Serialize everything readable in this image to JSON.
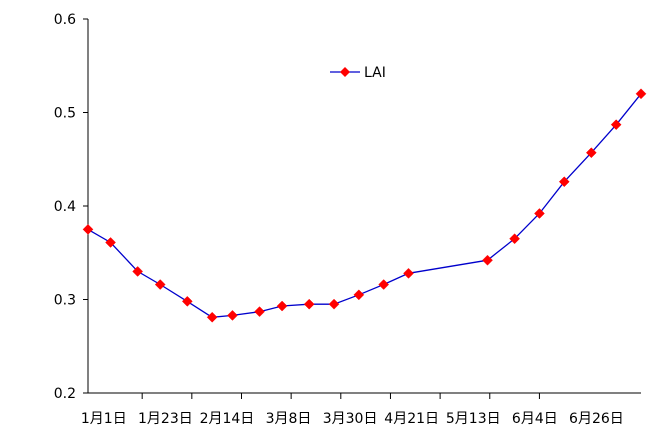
{
  "chart_data": {
    "type": "line",
    "title": "",
    "xlabel": "",
    "ylabel": "",
    "categories": [
      "1月1日",
      "1月23日",
      "2月14日",
      "3月8日",
      "3月30日",
      "4月21日",
      "5月13日",
      "6月4日",
      "6月26日"
    ],
    "ylim": [
      0.2,
      0.6
    ],
    "yticks": [
      "0.2",
      "0.3",
      "0.4",
      "0.5",
      "0.6"
    ],
    "grid": false,
    "legend": "top-center",
    "series": [
      {
        "name": "LAI",
        "line_color": "#0000cc",
        "marker_color": "#ff0000",
        "marker": "diamond",
        "x": [
          1,
          11,
          23,
          33,
          45,
          56,
          65,
          77,
          87,
          99,
          110,
          121,
          132,
          143,
          178,
          190,
          201,
          212,
          224,
          235,
          246
        ],
        "values": [
          0.375,
          0.361,
          0.33,
          0.316,
          0.298,
          0.281,
          0.283,
          0.287,
          0.293,
          0.295,
          0.295,
          0.305,
          0.316,
          0.328,
          0.342,
          0.365,
          0.392,
          0.426,
          0.457,
          0.487,
          0.52
        ]
      }
    ]
  }
}
